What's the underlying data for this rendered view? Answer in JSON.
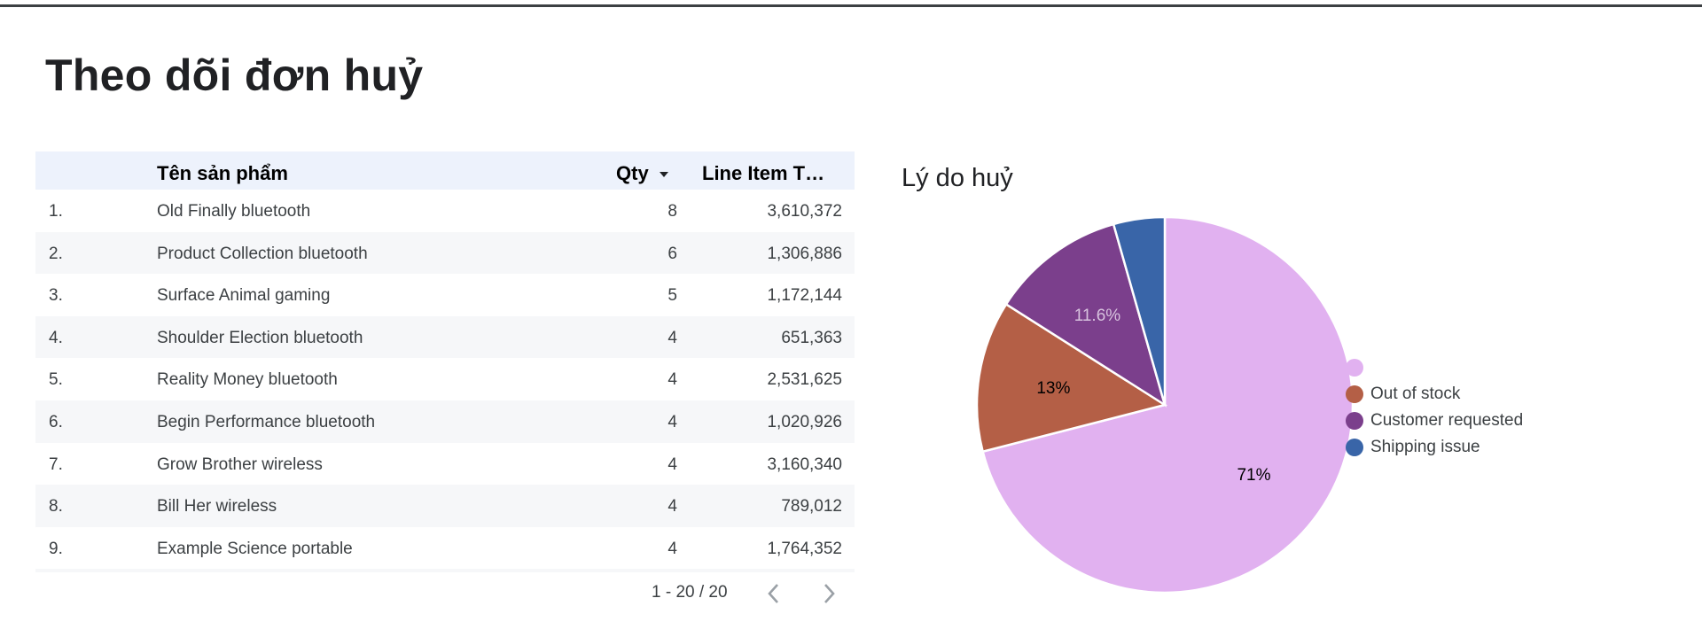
{
  "page": {
    "title": "Theo dõi đơn huỷ"
  },
  "table": {
    "headers": {
      "name": "Tên sản phẩm",
      "qty": "Qty",
      "total": "Line Item T…"
    },
    "rows": [
      {
        "idx": "1.",
        "name": "Old Finally bluetooth",
        "qty": "8",
        "total": "3,610,372"
      },
      {
        "idx": "2.",
        "name": "Product Collection bluetooth",
        "qty": "6",
        "total": "1,306,886"
      },
      {
        "idx": "3.",
        "name": "Surface Animal gaming",
        "qty": "5",
        "total": "1,172,144"
      },
      {
        "idx": "4.",
        "name": "Shoulder Election bluetooth",
        "qty": "4",
        "total": "651,363"
      },
      {
        "idx": "5.",
        "name": "Reality Money bluetooth",
        "qty": "4",
        "total": "2,531,625"
      },
      {
        "idx": "6.",
        "name": "Begin Performance bluetooth",
        "qty": "4",
        "total": "1,020,926"
      },
      {
        "idx": "7.",
        "name": "Grow Brother wireless",
        "qty": "4",
        "total": "3,160,340"
      },
      {
        "idx": "8.",
        "name": "Bill Her wireless",
        "qty": "4",
        "total": "789,012"
      },
      {
        "idx": "9.",
        "name": "Example Science portable",
        "qty": "4",
        "total": "1,764,352"
      }
    ],
    "pagination": {
      "label": "1 - 20 / 20",
      "prev_icon": "chevron-left-icon",
      "next_icon": "chevron-right-icon"
    }
  },
  "chart_data": {
    "type": "pie",
    "title": "Lý do huỷ",
    "legend_position": "right",
    "slices": [
      {
        "name": "",
        "percent": 71.0,
        "label": "71%",
        "color": "#e1b1f0"
      },
      {
        "name": "Out of stock",
        "percent": 13.0,
        "label": "13%",
        "color": "#b45f46"
      },
      {
        "name": "Customer requested",
        "percent": 11.6,
        "label": "11.6%",
        "color": "#7b3f8c"
      },
      {
        "name": "Shipping issue",
        "percent": 4.4,
        "label": "",
        "color": "#3965a8"
      }
    ]
  }
}
